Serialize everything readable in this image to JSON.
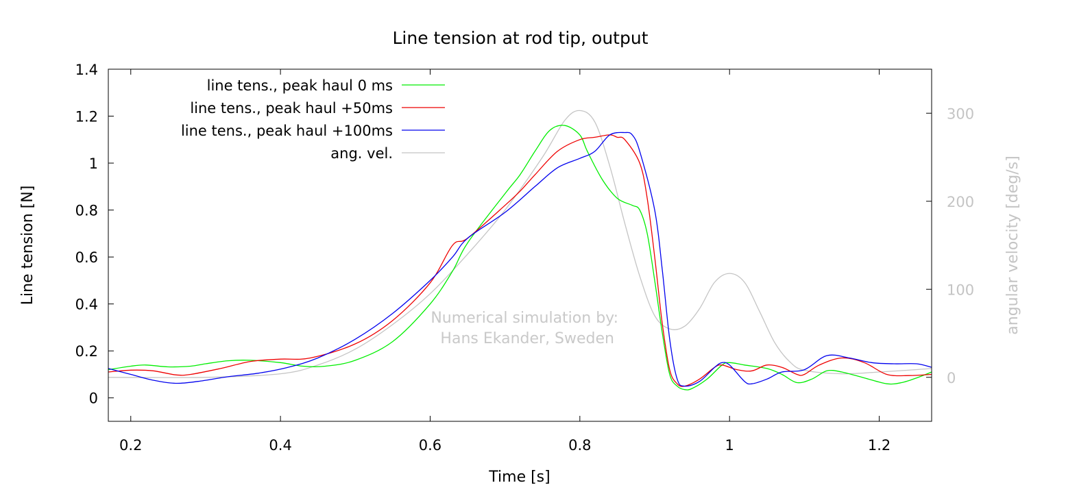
{
  "chart_data": {
    "type": "line",
    "title": "Line tension at rod tip, output",
    "xlabel": "Time [s]",
    "ylabel": "Line tension [N]",
    "y2label": "angular velocity [deg/s]",
    "xlim": [
      0.17,
      1.27
    ],
    "ylim": [
      -0.1,
      1.4
    ],
    "y2lim": [
      -50,
      350
    ],
    "xticks": [
      "0.2",
      "0.4",
      "0.6",
      "0.8",
      "1",
      "1.2"
    ],
    "yticks": [
      "0",
      "0.2",
      "0.4",
      "0.6",
      "0.8",
      "1",
      "1.2",
      "1.4"
    ],
    "y2ticks": [
      "0",
      "100",
      "200",
      "300"
    ],
    "grid": false,
    "legend_position": "top-left",
    "annotation": [
      "Numerical simulation by:",
      "Hans Ekander, Sweden"
    ],
    "series": [
      {
        "name": "line tens., peak haul 0 ms",
        "axis": "y1",
        "color": "#00ee00",
        "points": [
          [
            0.17,
            0.12
          ],
          [
            0.2,
            0.135
          ],
          [
            0.22,
            0.14
          ],
          [
            0.25,
            0.132
          ],
          [
            0.28,
            0.135
          ],
          [
            0.3,
            0.145
          ],
          [
            0.33,
            0.158
          ],
          [
            0.36,
            0.16
          ],
          [
            0.4,
            0.15
          ],
          [
            0.43,
            0.135
          ],
          [
            0.46,
            0.135
          ],
          [
            0.5,
            0.16
          ],
          [
            0.55,
            0.24
          ],
          [
            0.6,
            0.4
          ],
          [
            0.63,
            0.54
          ],
          [
            0.65,
            0.66
          ],
          [
            0.7,
            0.87
          ],
          [
            0.72,
            0.95
          ],
          [
            0.74,
            1.05
          ],
          [
            0.76,
            1.14
          ],
          [
            0.78,
            1.16
          ],
          [
            0.8,
            1.12
          ],
          [
            0.81,
            1.05
          ],
          [
            0.83,
            0.93
          ],
          [
            0.85,
            0.85
          ],
          [
            0.87,
            0.82
          ],
          [
            0.88,
            0.8
          ],
          [
            0.89,
            0.7
          ],
          [
            0.9,
            0.5
          ],
          [
            0.91,
            0.28
          ],
          [
            0.92,
            0.1
          ],
          [
            0.93,
            0.05
          ],
          [
            0.94,
            0.035
          ],
          [
            0.95,
            0.04
          ],
          [
            0.97,
            0.08
          ],
          [
            0.99,
            0.14
          ],
          [
            1.0,
            0.15
          ],
          [
            1.02,
            0.14
          ],
          [
            1.05,
            0.125
          ],
          [
            1.07,
            0.1
          ],
          [
            1.09,
            0.065
          ],
          [
            1.11,
            0.08
          ],
          [
            1.13,
            0.115
          ],
          [
            1.15,
            0.11
          ],
          [
            1.18,
            0.085
          ],
          [
            1.21,
            0.06
          ],
          [
            1.23,
            0.065
          ],
          [
            1.25,
            0.085
          ],
          [
            1.27,
            0.11
          ]
        ]
      },
      {
        "name": "line tens., peak haul +50ms",
        "axis": "y1",
        "color": "#ee0000",
        "points": [
          [
            0.17,
            0.11
          ],
          [
            0.2,
            0.118
          ],
          [
            0.23,
            0.115
          ],
          [
            0.26,
            0.098
          ],
          [
            0.28,
            0.1
          ],
          [
            0.32,
            0.125
          ],
          [
            0.36,
            0.155
          ],
          [
            0.4,
            0.165
          ],
          [
            0.44,
            0.17
          ],
          [
            0.5,
            0.23
          ],
          [
            0.55,
            0.33
          ],
          [
            0.6,
            0.49
          ],
          [
            0.63,
            0.65
          ],
          [
            0.65,
            0.68
          ],
          [
            0.7,
            0.82
          ],
          [
            0.72,
            0.88
          ],
          [
            0.74,
            0.95
          ],
          [
            0.77,
            1.05
          ],
          [
            0.8,
            1.1
          ],
          [
            0.82,
            1.11
          ],
          [
            0.84,
            1.12
          ],
          [
            0.85,
            1.11
          ],
          [
            0.86,
            1.1
          ],
          [
            0.88,
            1.0
          ],
          [
            0.89,
            0.85
          ],
          [
            0.9,
            0.6
          ],
          [
            0.91,
            0.32
          ],
          [
            0.92,
            0.12
          ],
          [
            0.93,
            0.06
          ],
          [
            0.94,
            0.05
          ],
          [
            0.96,
            0.08
          ],
          [
            0.98,
            0.13
          ],
          [
            0.99,
            0.14
          ],
          [
            1.01,
            0.12
          ],
          [
            1.03,
            0.115
          ],
          [
            1.05,
            0.14
          ],
          [
            1.07,
            0.13
          ],
          [
            1.09,
            0.1
          ],
          [
            1.1,
            0.1
          ],
          [
            1.12,
            0.14
          ],
          [
            1.15,
            0.17
          ],
          [
            1.18,
            0.15
          ],
          [
            1.21,
            0.1
          ],
          [
            1.24,
            0.095
          ],
          [
            1.27,
            0.1
          ]
        ]
      },
      {
        "name": "line tens., peak haul +100ms",
        "axis": "y1",
        "color": "#0000ee",
        "points": [
          [
            0.17,
            0.125
          ],
          [
            0.2,
            0.1
          ],
          [
            0.23,
            0.075
          ],
          [
            0.26,
            0.062
          ],
          [
            0.29,
            0.07
          ],
          [
            0.33,
            0.09
          ],
          [
            0.37,
            0.105
          ],
          [
            0.41,
            0.13
          ],
          [
            0.45,
            0.17
          ],
          [
            0.5,
            0.25
          ],
          [
            0.55,
            0.36
          ],
          [
            0.6,
            0.5
          ],
          [
            0.63,
            0.6
          ],
          [
            0.65,
            0.68
          ],
          [
            0.7,
            0.79
          ],
          [
            0.74,
            0.9
          ],
          [
            0.77,
            0.98
          ],
          [
            0.8,
            1.02
          ],
          [
            0.82,
            1.05
          ],
          [
            0.84,
            1.12
          ],
          [
            0.86,
            1.13
          ],
          [
            0.87,
            1.12
          ],
          [
            0.88,
            1.05
          ],
          [
            0.9,
            0.8
          ],
          [
            0.91,
            0.55
          ],
          [
            0.92,
            0.25
          ],
          [
            0.93,
            0.08
          ],
          [
            0.94,
            0.05
          ],
          [
            0.96,
            0.07
          ],
          [
            0.98,
            0.13
          ],
          [
            0.99,
            0.15
          ],
          [
            1.0,
            0.14
          ],
          [
            1.02,
            0.07
          ],
          [
            1.03,
            0.06
          ],
          [
            1.05,
            0.08
          ],
          [
            1.07,
            0.11
          ],
          [
            1.1,
            0.12
          ],
          [
            1.13,
            0.18
          ],
          [
            1.16,
            0.17
          ],
          [
            1.19,
            0.15
          ],
          [
            1.22,
            0.145
          ],
          [
            1.25,
            0.145
          ],
          [
            1.27,
            0.13
          ]
        ]
      },
      {
        "name": "ang. vel.",
        "axis": "y2",
        "color": "#c4c4c4",
        "points": [
          [
            0.17,
            0.0
          ],
          [
            0.3,
            0.0
          ],
          [
            0.4,
            4
          ],
          [
            0.45,
            14
          ],
          [
            0.5,
            32
          ],
          [
            0.55,
            60
          ],
          [
            0.6,
            95
          ],
          [
            0.65,
            140
          ],
          [
            0.7,
            190
          ],
          [
            0.75,
            250
          ],
          [
            0.78,
            292
          ],
          [
            0.8,
            303
          ],
          [
            0.82,
            290
          ],
          [
            0.84,
            240
          ],
          [
            0.86,
            175
          ],
          [
            0.88,
            115
          ],
          [
            0.9,
            70
          ],
          [
            0.92,
            55
          ],
          [
            0.94,
            58
          ],
          [
            0.96,
            78
          ],
          [
            0.98,
            108
          ],
          [
            1.0,
            118
          ],
          [
            1.02,
            108
          ],
          [
            1.04,
            75
          ],
          [
            1.06,
            40
          ],
          [
            1.08,
            18
          ],
          [
            1.1,
            8
          ],
          [
            1.15,
            4
          ],
          [
            1.2,
            6
          ],
          [
            1.27,
            10
          ]
        ]
      }
    ]
  }
}
